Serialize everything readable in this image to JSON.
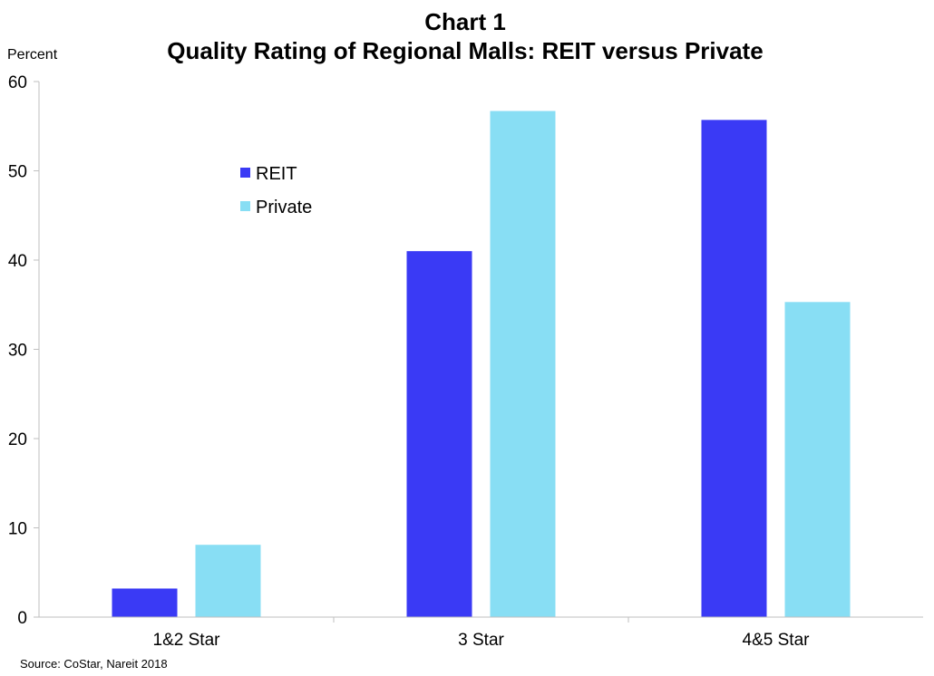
{
  "chart_data": {
    "type": "bar",
    "title_line1": "Chart 1",
    "title_line2": "Quality Rating of Regional Malls: REIT versus Private",
    "ylabel": "Percent",
    "xlabel": "",
    "ylim": [
      0,
      60
    ],
    "yticks": [
      "0",
      "10",
      "20",
      "30",
      "40",
      "50",
      "60"
    ],
    "categories": [
      "1&2 Star",
      "3 Star",
      "4&5 Star"
    ],
    "series": [
      {
        "name": "REIT",
        "color": "#3a3af5",
        "values": [
          3.2,
          41.0,
          55.7
        ]
      },
      {
        "name": "Private",
        "color": "#88def4",
        "values": [
          8.1,
          56.7,
          35.3
        ]
      }
    ],
    "grid": false,
    "legend_position": "top-left",
    "source": "Source: CoStar, Nareit 2018"
  }
}
